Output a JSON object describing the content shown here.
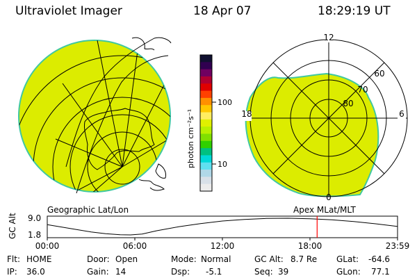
{
  "header": {
    "title": "Ultraviolet Imager",
    "date": "18 Apr 07",
    "time": "18:29:19 UT"
  },
  "colors": {
    "image_fill": "#dcec00",
    "image_edge": "#40c8a0",
    "marker_line": "#ff0000"
  },
  "colorbar": {
    "unit_label": "photon cm⁻²s⁻¹",
    "ticks": [
      "100",
      "10"
    ],
    "colors": [
      "#101030",
      "#300050",
      "#700060",
      "#b00030",
      "#e00000",
      "#ff4000",
      "#ff9000",
      "#ffc800",
      "#ffee60",
      "#e0f000",
      "#b8f000",
      "#80e000",
      "#30d000",
      "#00c080",
      "#00d8d8",
      "#60e0f0",
      "#b0d8e8",
      "#d8e0e8",
      "#ececec"
    ]
  },
  "left_panel": {
    "caption": "Geographic Lat/Lon"
  },
  "right_panel": {
    "caption": "Apex MLat/MLT",
    "mlt_labels": {
      "top": "12",
      "left": "18",
      "right": "6",
      "bottom": "0"
    },
    "lat_labels": [
      "60",
      "70",
      "80"
    ]
  },
  "timeline": {
    "ylabel": "GC Alt",
    "y_ticks": [
      "9.0",
      "1.8"
    ],
    "x_ticks": [
      "00:00",
      "06:00",
      "12:00",
      "18:00",
      "23:59"
    ],
    "marker_hour": 18.49,
    "altitude_curve": [
      {
        "h": 0,
        "alt": 6.2
      },
      {
        "h": 1,
        "alt": 5.2
      },
      {
        "h": 2,
        "alt": 4.1
      },
      {
        "h": 3,
        "alt": 3.1
      },
      {
        "h": 4,
        "alt": 2.3
      },
      {
        "h": 5,
        "alt": 1.9
      },
      {
        "h": 5.7,
        "alt": 1.8
      },
      {
        "h": 6.5,
        "alt": 2.2
      },
      {
        "h": 7.5,
        "alt": 3.6
      },
      {
        "h": 9,
        "alt": 5.3
      },
      {
        "h": 10.5,
        "alt": 6.7
      },
      {
        "h": 12,
        "alt": 7.8
      },
      {
        "h": 13.5,
        "alt": 8.5
      },
      {
        "h": 15,
        "alt": 8.9
      },
      {
        "h": 16.5,
        "alt": 9.0
      },
      {
        "h": 18,
        "alt": 8.8
      },
      {
        "h": 19.5,
        "alt": 8.3
      },
      {
        "h": 21,
        "alt": 7.6
      },
      {
        "h": 22.5,
        "alt": 6.6
      },
      {
        "h": 23.98,
        "alt": 5.5
      }
    ]
  },
  "footer": {
    "flt_label": "Flt:",
    "flt_value": "HOME",
    "ip_label": "IP:",
    "ip_value": "36.0",
    "door_label": "Door:",
    "door_value": "Open",
    "gain_label": "Gain:",
    "gain_value": "14",
    "mode_label": "Mode:",
    "mode_value": "Normal",
    "dsp_label": "Dsp:",
    "dsp_value": "-5.1",
    "gcalt_label": "GC Alt:",
    "gcalt_value": "8.7 Re",
    "seq_label": "Seq:",
    "seq_value": "39",
    "glat_label": "GLat:",
    "glat_value": "-64.6",
    "glon_label": "GLon:",
    "glon_value": "77.1"
  }
}
